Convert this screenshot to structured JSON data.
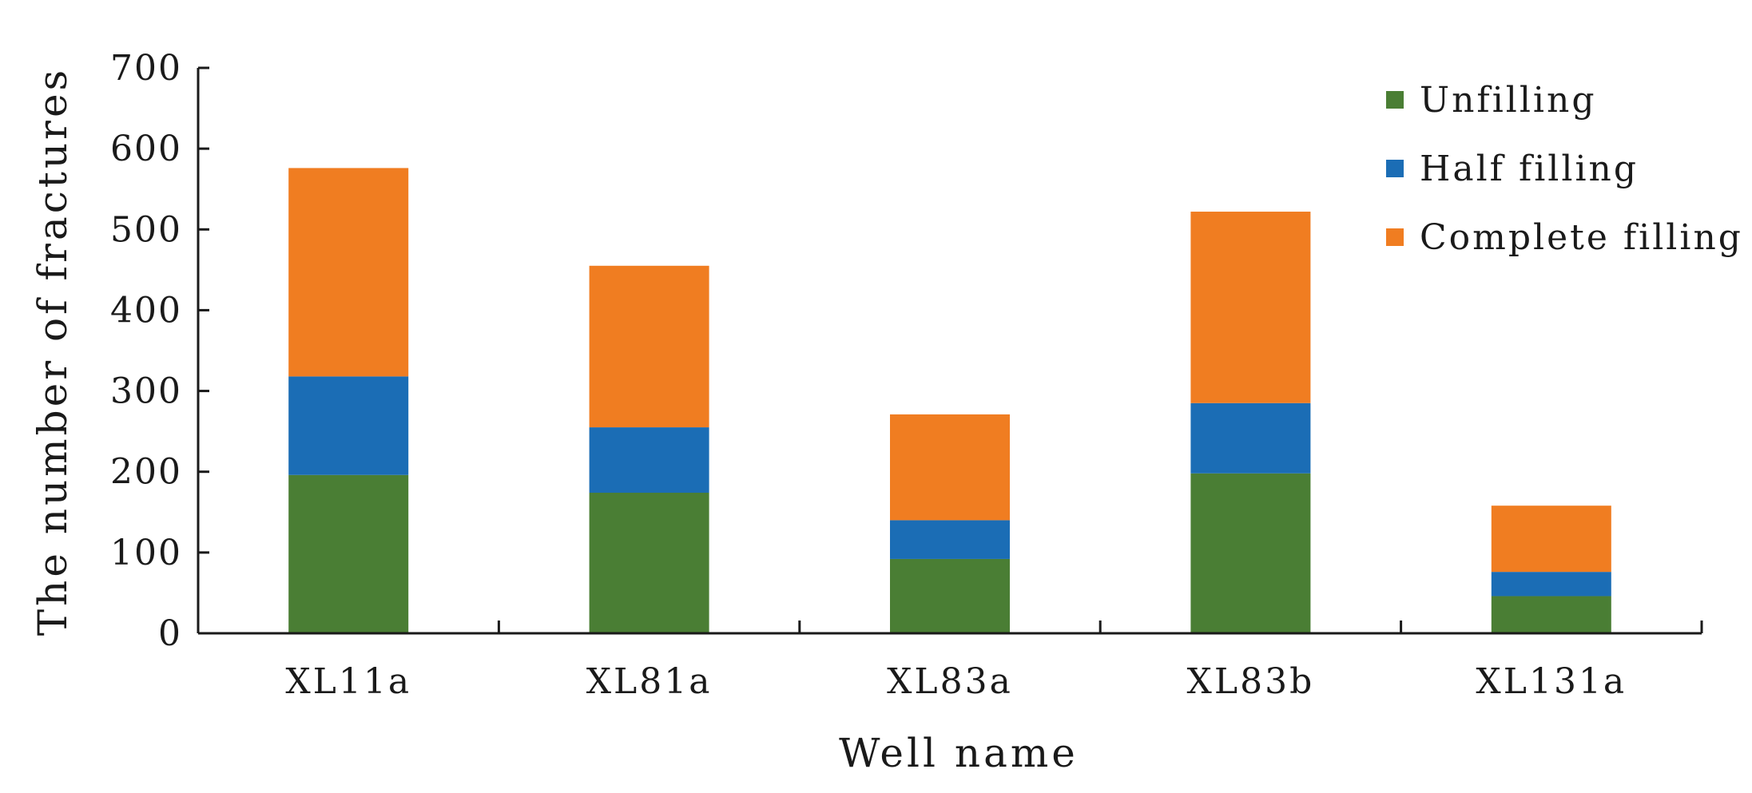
{
  "chart_data": {
    "type": "bar",
    "stacked": true,
    "categories": [
      "XL11a",
      "XL81a",
      "XL83a",
      "XL83b",
      "XL131a"
    ],
    "series": [
      {
        "name": "Unfilling",
        "color": "#4a7e34",
        "values": [
          196,
          174,
          92,
          198,
          46
        ]
      },
      {
        "name": "Half filling",
        "color": "#1b6db5",
        "values": [
          122,
          81,
          48,
          87,
          30
        ]
      },
      {
        "name": "Complete filling",
        "color": "#f07d21",
        "values": [
          258,
          200,
          131,
          237,
          82
        ]
      }
    ],
    "title": "",
    "xlabel": "Well name",
    "ylabel": "The number of fractures",
    "ylim": [
      0,
      700
    ],
    "yticks": [
      "0",
      "100",
      "200",
      "300",
      "400",
      "500",
      "600",
      "700"
    ],
    "grid": false,
    "legend_position": "top-right"
  }
}
